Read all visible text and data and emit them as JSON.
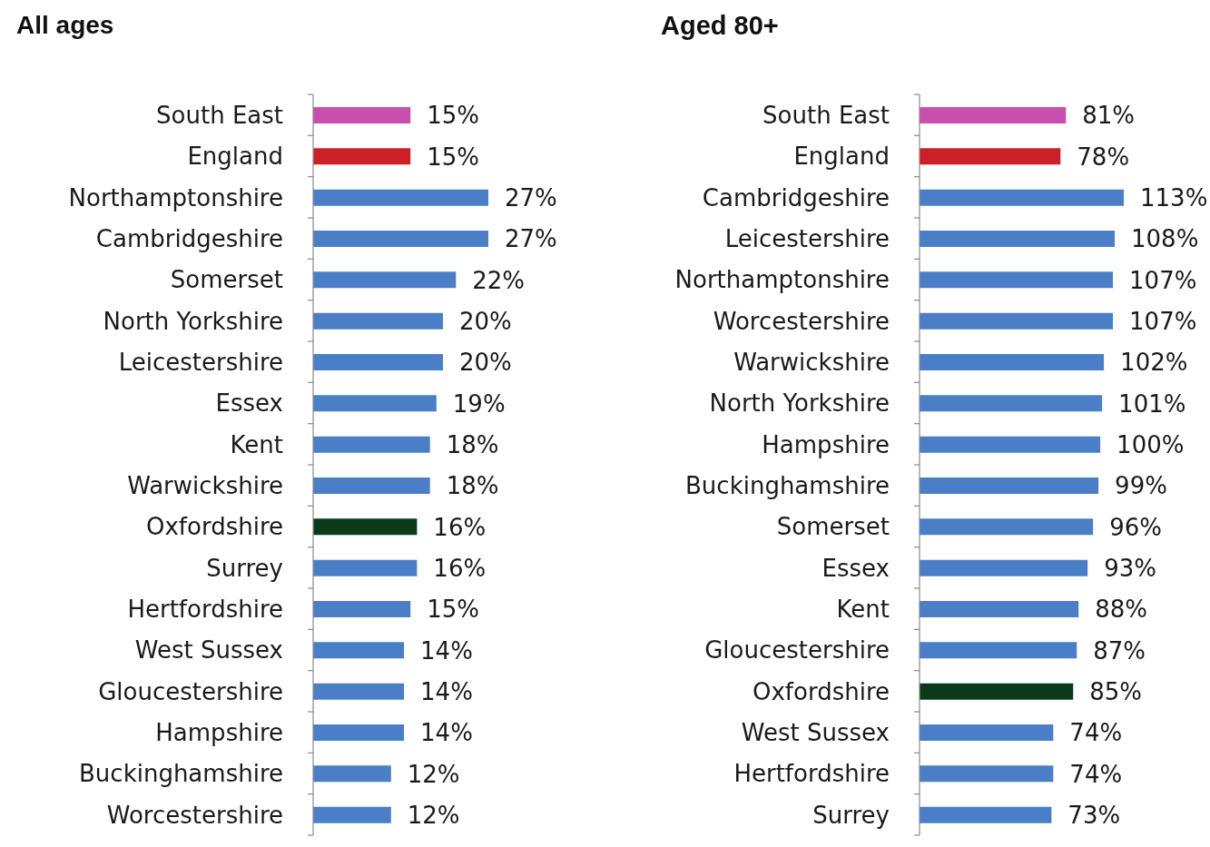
{
  "chart_data": [
    {
      "type": "bar",
      "orientation": "horizontal",
      "title": "All ages",
      "categories": [
        "South East",
        "England",
        "Northamptonshire",
        "Cambridgeshire",
        "Somerset",
        "North Yorkshire",
        "Leicestershire",
        "Essex",
        "Kent",
        "Warwickshire",
        "Oxfordshire",
        "Surrey",
        "Hertfordshire",
        "West Sussex",
        "Gloucestershire",
        "Hampshire",
        "Buckinghamshire",
        "Worcestershire"
      ],
      "values": [
        15,
        15,
        27,
        27,
        22,
        20,
        20,
        19,
        18,
        18,
        16,
        16,
        15,
        14,
        14,
        14,
        12,
        12
      ],
      "value_labels": [
        "15%",
        "15%",
        "27%",
        "27%",
        "22%",
        "20%",
        "20%",
        "19%",
        "18%",
        "18%",
        "16%",
        "16%",
        "15%",
        "14%",
        "14%",
        "14%",
        "12%",
        "12%"
      ],
      "colors": [
        "#c94fae",
        "#cc1f2a",
        "#4a7ec6",
        "#4a7ec6",
        "#4a7ec6",
        "#4a7ec6",
        "#4a7ec6",
        "#4a7ec6",
        "#4a7ec6",
        "#4a7ec6",
        "#0a3a1a",
        "#4a7ec6",
        "#4a7ec6",
        "#4a7ec6",
        "#4a7ec6",
        "#4a7ec6",
        "#4a7ec6",
        "#4a7ec6"
      ],
      "tick_labels": "y"
    },
    {
      "type": "bar",
      "orientation": "horizontal",
      "title": "Aged 80+",
      "categories": [
        "South East",
        "England",
        "Cambridgeshire",
        "Leicestershire",
        "Northamptonshire",
        "Worcestershire",
        "Warwickshire",
        "North Yorkshire",
        "Hampshire",
        "Buckinghamshire",
        "Somerset",
        "Essex",
        "Kent",
        "Gloucestershire",
        "Oxfordshire",
        "West Sussex",
        "Hertfordshire",
        "Surrey"
      ],
      "values": [
        81,
        78,
        113,
        108,
        107,
        107,
        102,
        101,
        100,
        99,
        96,
        93,
        88,
        87,
        85,
        74,
        74,
        73
      ],
      "value_labels": [
        "81%",
        "78%",
        "113%",
        "108%",
        "107%",
        "107%",
        "102%",
        "101%",
        "100%",
        "99%",
        "96%",
        "93%",
        "88%",
        "87%",
        "85%",
        "74%",
        "74%",
        "73%"
      ],
      "colors": [
        "#c94fae",
        "#cc1f2a",
        "#4a7ec6",
        "#4a7ec6",
        "#4a7ec6",
        "#4a7ec6",
        "#4a7ec6",
        "#4a7ec6",
        "#4a7ec6",
        "#4a7ec6",
        "#4a7ec6",
        "#4a7ec6",
        "#4a7ec6",
        "#4a7ec6",
        "#0a3a1a",
        "#4a7ec6",
        "#4a7ec6",
        "#4a7ec6"
      ],
      "tick_labels": "y"
    }
  ]
}
